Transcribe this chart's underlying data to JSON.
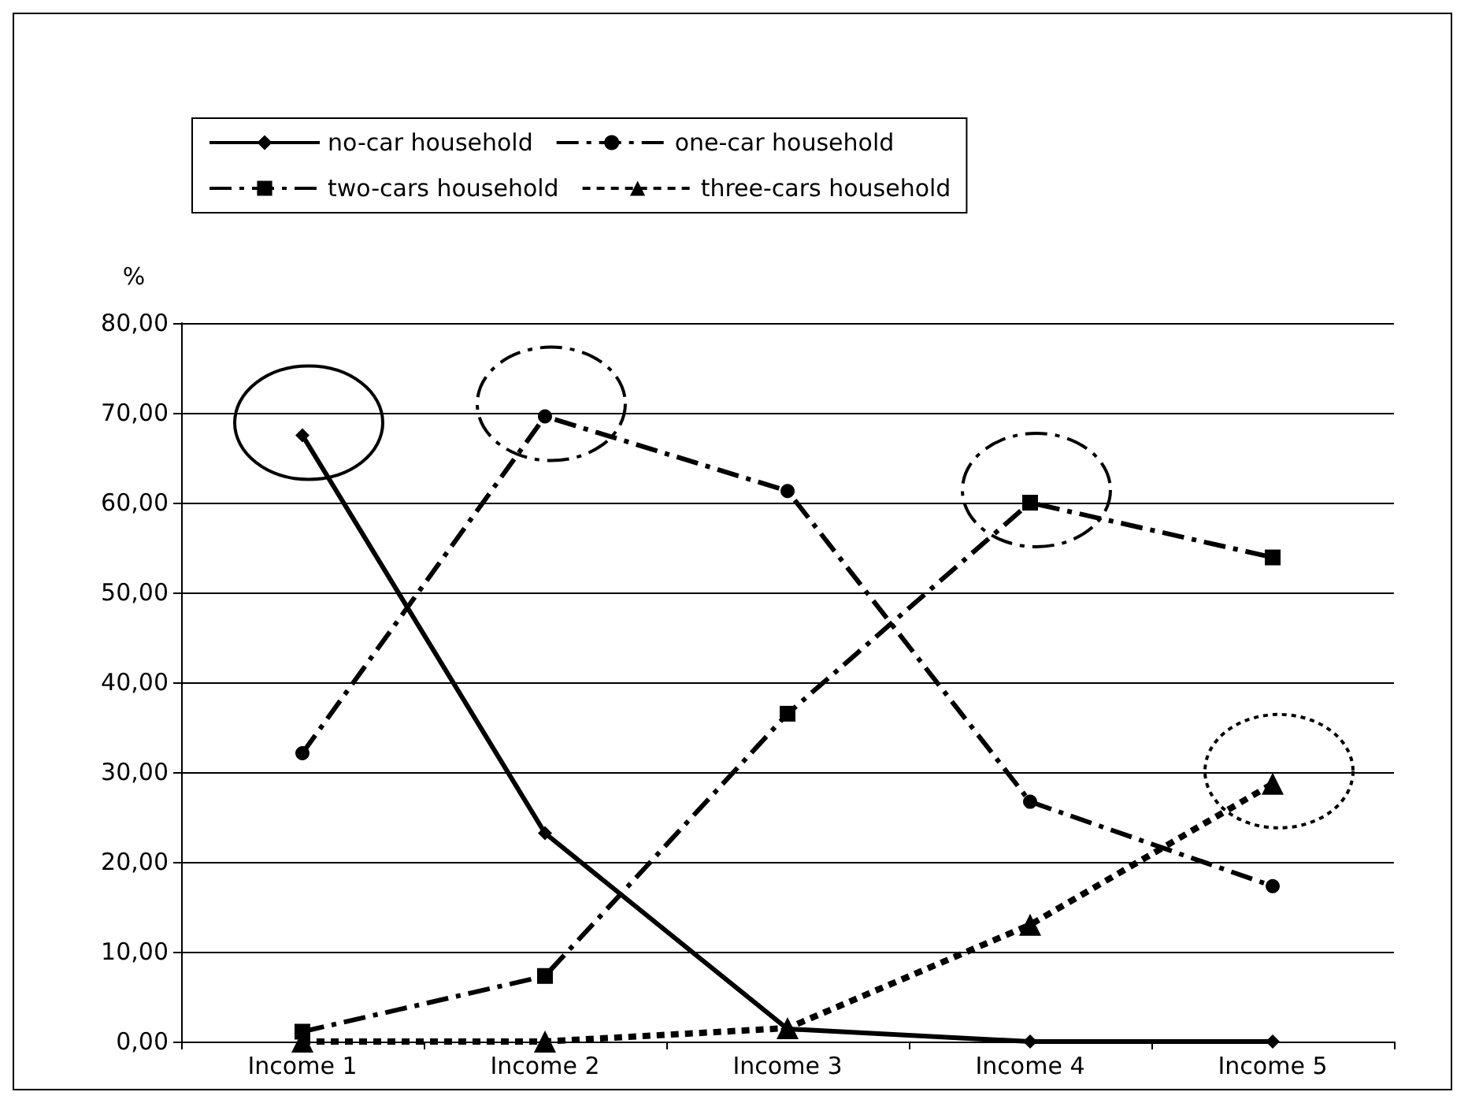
{
  "chart_data": {
    "type": "line",
    "ylabel": "%",
    "categories": [
      "Income 1",
      "Income 2",
      "Income 3",
      "Income 4",
      "Income 5"
    ],
    "series": [
      {
        "name": "no-car household",
        "color": "#000000",
        "marker": "diamond",
        "line_style": "solid",
        "values": [
          67.5,
          23.2,
          1.4,
          0,
          0
        ]
      },
      {
        "name": "one-car household",
        "color": "#000000",
        "marker": "circle",
        "line_style": "dashed",
        "values": [
          32.1,
          69.6,
          61.3,
          26.7,
          17.3
        ]
      },
      {
        "name": "two-cars household",
        "color": "#000000",
        "marker": "square",
        "line_style": "dashed",
        "values": [
          1.1,
          7.3,
          36.5,
          60,
          53.9
        ]
      },
      {
        "name": "three-cars household",
        "color": "#000000",
        "marker": "triangle",
        "line_style": "dotted",
        "values": [
          0,
          0,
          1.5,
          13,
          28.7
        ]
      }
    ],
    "ylim": [
      0,
      80
    ],
    "yticks": [
      {
        "value": 0,
        "label": "0,00"
      },
      {
        "value": 10,
        "label": "10,00"
      },
      {
        "value": 20,
        "label": "20,00"
      },
      {
        "value": 30,
        "label": "30,00"
      },
      {
        "value": 40,
        "label": "40,00"
      },
      {
        "value": 50,
        "label": "50,00"
      },
      {
        "value": 60,
        "label": "60,00"
      },
      {
        "value": 70,
        "label": "70,00"
      },
      {
        "value": 80,
        "label": "80,00"
      }
    ],
    "grid": "y",
    "legend": "top"
  }
}
